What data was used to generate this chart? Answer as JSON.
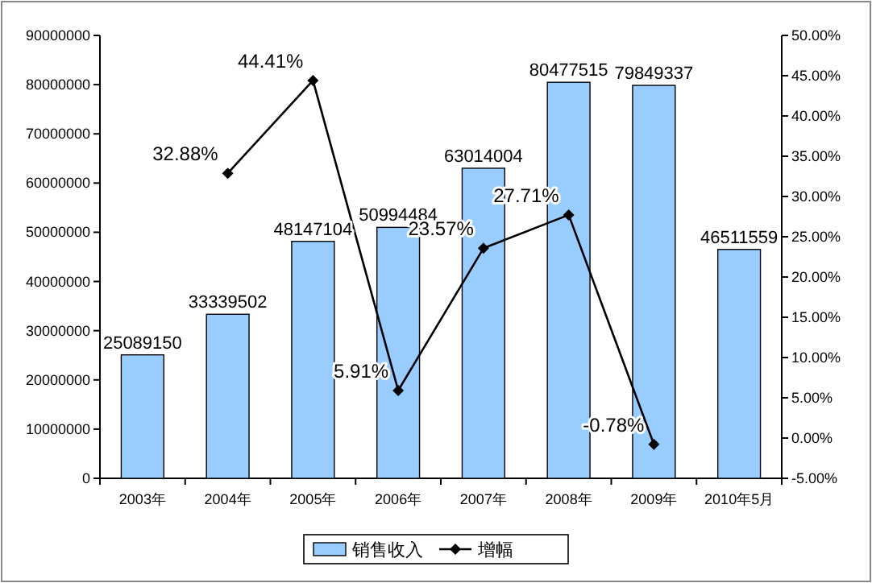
{
  "chart_data": {
    "type": "bar",
    "categories": [
      "2003年",
      "2004年",
      "2005年",
      "2006年",
      "2007年",
      "2008年",
      "2009年",
      "2010年5月"
    ],
    "series": [
      {
        "name": "销售收入",
        "color": "#99ccff",
        "values": [
          25089150,
          33339502,
          48147104,
          50994484,
          63014004,
          80477515,
          79849337,
          46511559
        ],
        "value_labels": [
          "25089150",
          "33339502",
          "48147104",
          "50994484",
          "63014004",
          "80477515",
          "79849337",
          "46511559"
        ]
      },
      {
        "name": "增幅",
        "type": "line",
        "axis": "y2",
        "color": "#000000",
        "marker": "diamond",
        "values": [
          null,
          32.88,
          44.41,
          5.91,
          23.57,
          27.71,
          -0.78,
          null
        ],
        "value_labels": [
          null,
          "32.88%",
          "44.41%",
          "5.91%",
          "23.57%",
          "27.71%",
          "-0.78%",
          null
        ]
      }
    ],
    "ylim": [
      0,
      90000000
    ],
    "yticks": [
      0,
      10000000,
      20000000,
      30000000,
      40000000,
      50000000,
      60000000,
      70000000,
      80000000,
      90000000
    ],
    "y2lim": [
      -5,
      50
    ],
    "y2ticks": [
      {
        "value": -5,
        "label": "-5.00%"
      },
      {
        "value": 0,
        "label": "0.00%"
      },
      {
        "value": 5,
        "label": "5.00%"
      },
      {
        "value": 10,
        "label": "10.00%"
      },
      {
        "value": 15,
        "label": "15.00%"
      },
      {
        "value": 20,
        "label": "20.00%"
      },
      {
        "value": 25,
        "label": "25.00%"
      },
      {
        "value": 30,
        "label": "30.00%"
      },
      {
        "value": 35,
        "label": "35.00%"
      },
      {
        "value": 40,
        "label": "40.00%"
      },
      {
        "value": 45,
        "label": "45.00%"
      },
      {
        "value": 50,
        "label": "50.00%"
      }
    ],
    "legend": "bottom"
  }
}
